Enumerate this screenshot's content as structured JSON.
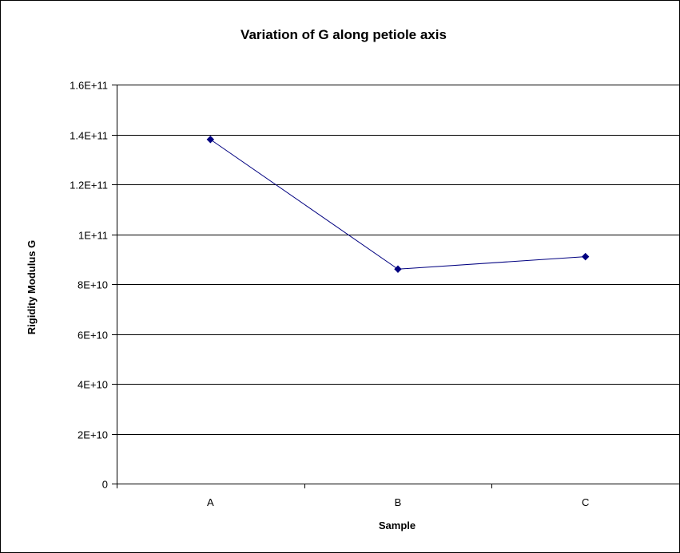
{
  "chart_data": {
    "type": "line",
    "title": "Variation of G along petiole axis",
    "xlabel": "Sample",
    "ylabel": "Rigidity Modulus G",
    "categories": [
      "A",
      "B",
      "C"
    ],
    "series": [
      {
        "values": [
          138000000000,
          86000000000,
          91000000000
        ],
        "color": "#000080"
      }
    ],
    "ylim": [
      0,
      160000000000
    ],
    "yticks": [
      0,
      20000000000,
      40000000000,
      60000000000,
      80000000000,
      100000000000,
      120000000000,
      140000000000,
      160000000000
    ],
    "ytick_labels": [
      "0",
      "2E+10",
      "4E+10",
      "6E+10",
      "8E+10",
      "1E+11",
      "1.2E+11",
      "1.4E+11",
      "1.6E+11"
    ],
    "grid": true,
    "legend": "none"
  }
}
